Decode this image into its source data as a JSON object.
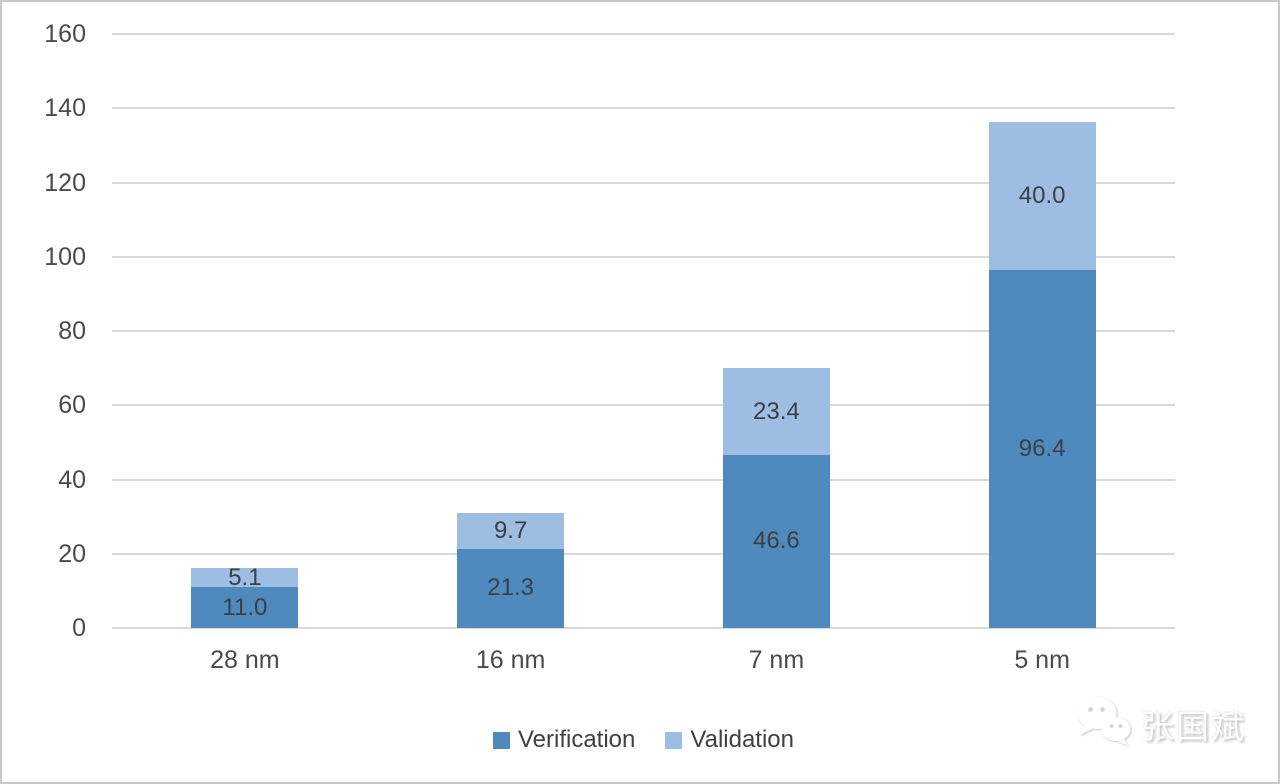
{
  "chart_data": {
    "type": "bar",
    "stacked": true,
    "categories": [
      "28 nm",
      "16 nm",
      "7 nm",
      "5 nm"
    ],
    "series": [
      {
        "name": "Verification",
        "color": "#4E8ABD",
        "values": [
          11.0,
          21.3,
          46.6,
          96.4
        ]
      },
      {
        "name": "Validation",
        "color": "#9DBDE2",
        "values": [
          5.1,
          9.7,
          23.4,
          40.0
        ]
      }
    ],
    "ylim": [
      0,
      160
    ],
    "yticks": [
      0,
      20,
      40,
      60,
      80,
      100,
      120,
      140,
      160
    ],
    "grid": true,
    "legend_position": "bottom",
    "value_label_decimals": 1,
    "colors": {
      "gridline": "#d9d9d9",
      "axis_text": "#4a4a4a",
      "value_label_text": "#3d3f42"
    }
  },
  "watermark": {
    "text": "张国斌",
    "icon": "wechat-logo-icon"
  }
}
